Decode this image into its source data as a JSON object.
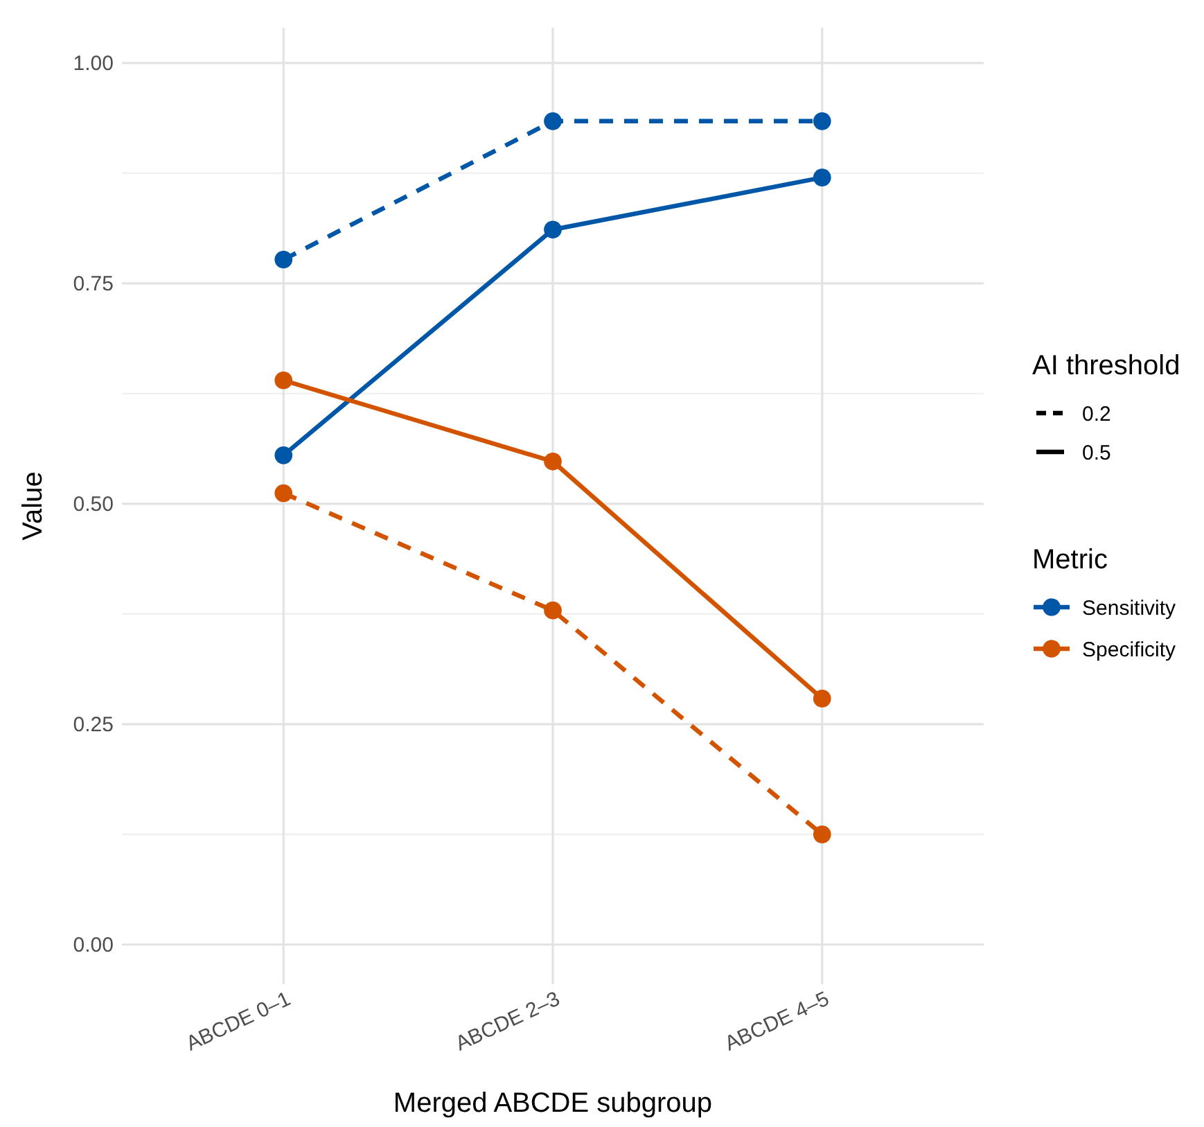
{
  "chart_data": {
    "type": "line",
    "xlabel": "Merged ABCDE subgroup",
    "ylabel": "Value",
    "categories": [
      "ABCDE 0–1",
      "ABCDE 2–3",
      "ABCDE 4–5"
    ],
    "series": [
      {
        "color": "#0057a8",
        "line_style": "dashed",
        "values": [
          0.777,
          0.934,
          0.934
        ]
      },
      {
        "name": "Sensitivity",
        "color": "#0057a8",
        "line_style": "solid",
        "values": [
          0.555,
          0.811,
          0.87
        ]
      },
      {
        "name": "Specificity",
        "color": "#d35400",
        "line_style": "solid",
        "values": [
          0.64,
          0.548,
          0.279
        ]
      },
      {
        "color": "#d35400",
        "line_style": "dashed",
        "values": [
          0.512,
          0.379,
          0.125
        ]
      }
    ],
    "ylim": [
      -0.045,
      1.04
    ],
    "yticks": [
      {
        "value": 0,
        "label": "0.00"
      },
      {
        "value": 0.25,
        "label": "0.25"
      },
      {
        "value": 0.5,
        "label": "0.50"
      },
      {
        "value": 0.75,
        "label": "0.75"
      },
      {
        "value": 1,
        "label": "1.00"
      }
    ],
    "grid": true,
    "marker": "circle",
    "legend": "right",
    "legend_title": [
      "AI threshold",
      "Metric"
    ],
    "annotations": [
      "0.2",
      "0.5"
    ]
  }
}
